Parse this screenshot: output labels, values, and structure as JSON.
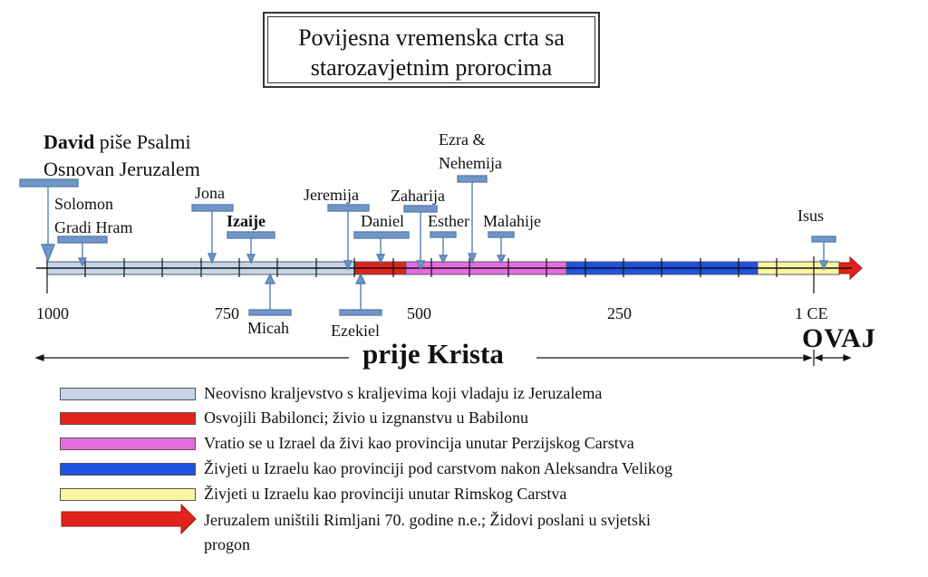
{
  "title": {
    "line1": "Povijesna vremenska crta sa",
    "line2": "starozavjetnim prorocima"
  },
  "top_label": {
    "bold": "David",
    "rest": " piše Psalmi",
    "line2": "Osnovan Jeruzalem"
  },
  "labels": {
    "solomon1": "Solomon",
    "solomon2": "Gradi Hram",
    "jona": "Jona",
    "izaije": "Izaije",
    "jeremija": "Jeremija",
    "daniel": "Daniel",
    "zaharija": "Zaharija",
    "esther": "Esther",
    "ezra1": "Ezra &",
    "ezra2": "Nehemija",
    "malahije": "Malahije",
    "isus": "Isus",
    "micah": "Micah",
    "ezekiel": "Ezekiel"
  },
  "axis_labels": {
    "l1000": "1000",
    "l750": "750",
    "l500": "500",
    "l250": "250",
    "l1ce": "1 CE"
  },
  "prije_krista": "prije Krista",
  "ovaj": "OVAJ",
  "colors": {
    "kingdom": "#c5d5e6",
    "babylon": "#e0231b",
    "persia": "#e46cdf",
    "greek": "#1f52e0",
    "rome": "#fbf6a0",
    "arrow": "#e0231b",
    "marker": "#6f96c7"
  },
  "legend": [
    {
      "color": "#c5d5e6",
      "text": "Neovisno kraljevstvo s kraljevima koji vladaju iz Jeruzalema"
    },
    {
      "color": "#e0231b",
      "text": "Osvojili Babilonci; živio u izgnanstvu u Babilonu"
    },
    {
      "color": "#e46cdf",
      "text": "Vratio se u Izrael da živi kao provincija unutar Perzijskog Carstva"
    },
    {
      "color": "#1f52e0",
      "text": "Živjeti u Izraelu kao provinciji pod carstvom nakon Aleksandra Velikog"
    },
    {
      "color": "#fbf6a0",
      "text": "Živjeti u Izraelu kao provinciji unutar Rimskog Carstva"
    }
  ],
  "legend_arrow": {
    "line1": "Jeruzalem uništili Rimljani 70. godine n.e.; Židovi poslani u svjetski",
    "line2": "progon"
  }
}
